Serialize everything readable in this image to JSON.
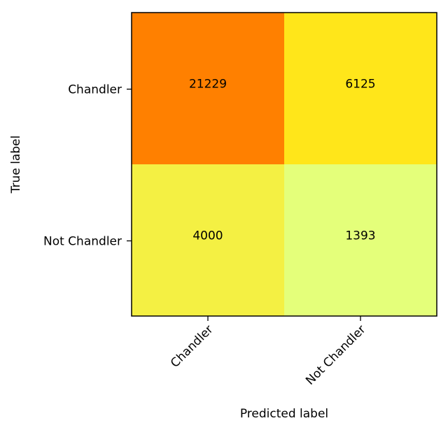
{
  "chart_data": {
    "type": "heatmap",
    "x_categories": [
      "Chandler",
      "Not Chandler"
    ],
    "y_categories": [
      "Chandler",
      "Not Chandler"
    ],
    "values": [
      [
        21229,
        6125
      ],
      [
        4000,
        1393
      ]
    ],
    "xlabel": "Predicted label",
    "ylabel": "True label",
    "colormap": "Wistia",
    "cell_colors": [
      [
        "#ff8000",
        "#ffe61a"
      ],
      [
        "#f4f043",
        "#e4ff7a"
      ]
    ]
  }
}
